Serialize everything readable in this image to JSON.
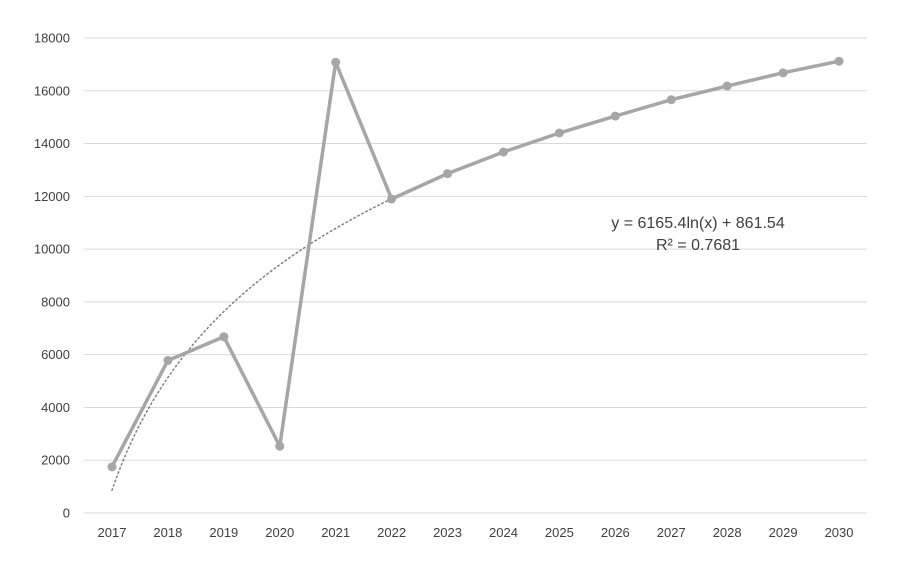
{
  "chart_data": {
    "type": "line",
    "title": "",
    "xlabel": "",
    "ylabel": "",
    "categories": [
      "2017",
      "2018",
      "2019",
      "2020",
      "2021",
      "2022",
      "2023",
      "2024",
      "2025",
      "2026",
      "2027",
      "2028",
      "2029",
      "2030"
    ],
    "series": [
      {
        "values": [
          1750,
          5780,
          6680,
          2530,
          17080,
          11900,
          12860,
          13680,
          14400,
          15040,
          15660,
          16180,
          16680,
          17120
        ],
        "color": "#a6a6a6",
        "marker": "circle"
      }
    ],
    "trendline": {
      "type": "logarithmic",
      "equation": "y = 6165.4ln(x) + 861.54",
      "r_squared": "R² = 0.7681",
      "a": 6165.4,
      "b": 861.54,
      "color": "#7f7f7f",
      "style": "dotted"
    },
    "ylim": [
      0,
      18000
    ],
    "yticks": [
      0,
      2000,
      4000,
      6000,
      8000,
      10000,
      12000,
      14000,
      16000,
      18000
    ],
    "grid": true,
    "legend": "none",
    "colors": {
      "gridline": "#d9d9d9",
      "axis_text": "#404040"
    }
  }
}
